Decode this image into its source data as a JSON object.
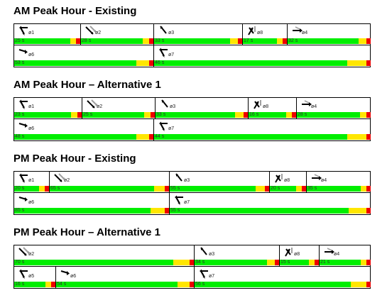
{
  "diagrams": [
    {
      "title": "AM Peak Hour - Existing",
      "rows": [
        [
          {
            "label": "ø1",
            "duration": "25 s",
            "icon": "left-turn-arrow-icon"
          },
          {
            "label": "ø2",
            "duration": "28 s",
            "icon": "through-left-arrow-icon"
          },
          {
            "label": "ø3",
            "duration": "33 s",
            "icon": "northwest-arrow-icon"
          },
          {
            "label": "ø8",
            "duration": "17 s",
            "icon": "multi-movement-arrow-icon"
          },
          {
            "label": "ø4",
            "duration": "32 s",
            "icon": "through-right-arrow-icon"
          }
        ],
        [
          {
            "label": "ø6",
            "duration": "53 s",
            "icon": "through-arrow-icon"
          },
          {
            "label": "ø7",
            "duration": "46 s",
            "icon": "left-turn-arrow-icon"
          }
        ]
      ]
    },
    {
      "title": "AM Peak Hour – Alternative 1",
      "rows": [
        [
          {
            "label": "ø1",
            "duration": "23 s",
            "icon": "left-turn-arrow-icon"
          },
          {
            "label": "ø2",
            "duration": "25 s",
            "icon": "through-left-arrow-icon"
          },
          {
            "label": "ø3",
            "duration": "33 s",
            "icon": "northwest-arrow-icon"
          },
          {
            "label": "ø8",
            "duration": "16 s",
            "icon": "multi-movement-arrow-icon"
          },
          {
            "label": "ø4",
            "duration": "28 s",
            "icon": "through-right-arrow-icon"
          }
        ],
        [
          {
            "label": "ø6",
            "duration": "48 s",
            "icon": "through-arrow-icon"
          },
          {
            "label": "ø7",
            "duration": "44 s",
            "icon": "left-turn-arrow-icon"
          }
        ]
      ]
    },
    {
      "title": "PM Peak Hour - Existing",
      "rows": [
        [
          {
            "label": "ø1",
            "duration": "20 s",
            "icon": "left-turn-arrow-icon"
          },
          {
            "label": "ø2",
            "duration": "65 s",
            "icon": "through-left-arrow-icon"
          },
          {
            "label": "ø3",
            "duration": "55 s",
            "icon": "northwest-arrow-icon"
          },
          {
            "label": "ø8",
            "duration": "20 s",
            "icon": "multi-movement-arrow-icon"
          },
          {
            "label": "ø4",
            "duration": "35 s",
            "icon": "through-right-arrow-icon"
          }
        ],
        [
          {
            "label": "ø6",
            "duration": "85 s",
            "icon": "through-arrow-icon"
          },
          {
            "label": "ø7",
            "duration": "55 s",
            "icon": "left-turn-arrow-icon"
          }
        ]
      ]
    },
    {
      "title": "PM Peak Hour – Alternative 1",
      "rows": [
        [
          {
            "label": "ø2",
            "duration": "70 s",
            "icon": "through-left-arrow-icon"
          },
          {
            "label": "ø3",
            "duration": "34 s",
            "icon": "northwest-arrow-icon"
          },
          {
            "label": "ø8",
            "duration": "15 s",
            "icon": "multi-movement-arrow-icon"
          },
          {
            "label": "ø4",
            "duration": "21 s",
            "icon": "through-right-arrow-icon"
          }
        ],
        [
          {
            "label": "ø5",
            "duration": "16 s",
            "icon": "left-turn-arrow-icon"
          },
          {
            "label": "ø6",
            "duration": "54 s",
            "icon": "through-arrow-icon"
          },
          {
            "label": "ø7",
            "duration": "56 s",
            "icon": "left-turn-arrow-icon"
          }
        ]
      ]
    }
  ],
  "colors": {
    "green": "#00ee00",
    "yellow": "#ffe600",
    "red": "#ee0000",
    "border": "#000000",
    "arrow_active": "#000000",
    "arrow_muted": "#a0a0a0"
  }
}
